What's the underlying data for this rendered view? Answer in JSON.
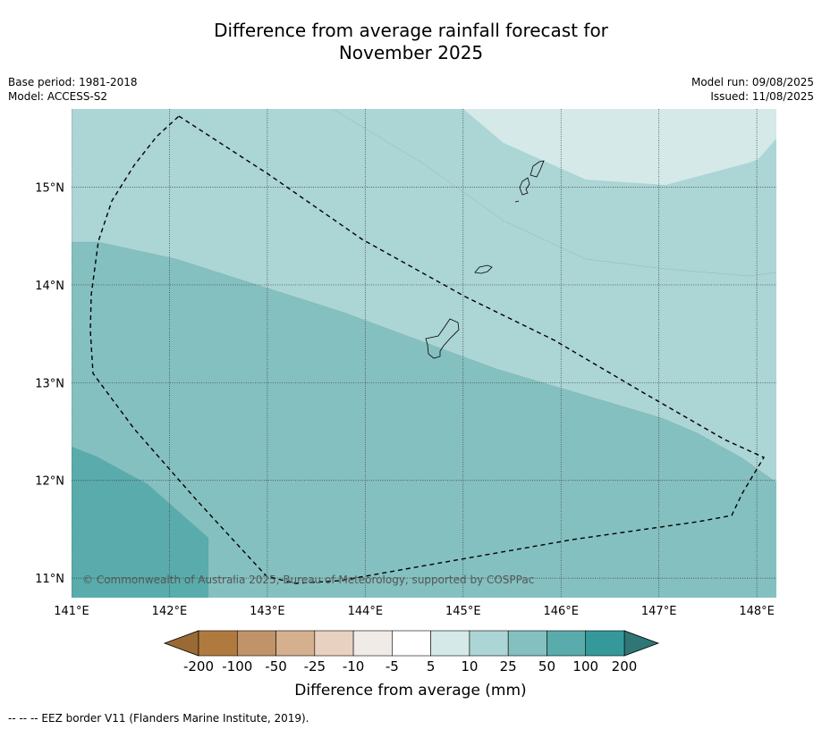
{
  "title_line1": "Difference from average rainfall forecast for",
  "title_line2": "November 2025",
  "base_period": "Base period: 1981-2018",
  "model": "Model: ACCESS-S2",
  "model_run": "Model run: 09/08/2025",
  "issued": "Issued: 11/08/2025",
  "copyright": "© Commonwealth of Australia 2025, Bureau of Meteorology, supported by COSPPac",
  "footer_note": "--  --  -- EEZ border V11 (Flanders Marine Institute, 2019).",
  "map": {
    "lon_range": [
      141.0,
      148.2
    ],
    "lat_range": [
      10.8,
      15.8
    ],
    "lon_ticks": [
      141,
      142,
      143,
      144,
      145,
      146,
      147,
      148
    ],
    "lon_tick_labels": [
      "141°E",
      "142°E",
      "143°E",
      "144°E",
      "145°E",
      "146°E",
      "147°E",
      "148°E"
    ],
    "lat_ticks": [
      11,
      12,
      13,
      14,
      15
    ],
    "lat_tick_labels": [
      "11°N",
      "12°N",
      "13°N",
      "14°N",
      "15°N"
    ],
    "grid": true,
    "zone_colors": {
      "5_10": "#d4e9e8",
      "10_25": "#acd5d5",
      "25_50": "#85c0c0",
      "50_100": "#5aacac"
    },
    "islands": [
      "Guam",
      "Rota",
      "Tinian",
      "Saipan"
    ]
  },
  "colorbar": {
    "title": "Difference from average (mm)",
    "boundaries": [
      "-200",
      "-100",
      "-50",
      "-25",
      "-10",
      "-5",
      "5",
      "10",
      "25",
      "50",
      "100",
      "200"
    ],
    "colors": [
      "#b07a3f",
      "#c09468",
      "#d4b08e",
      "#e8d1c0",
      "#f1ebe8",
      "#ffffff",
      "#d4e9e8",
      "#acd5d5",
      "#85c0c0",
      "#5aacac",
      "#35999a"
    ],
    "under_color": "#9a6a35",
    "over_color": "#2f7676"
  }
}
